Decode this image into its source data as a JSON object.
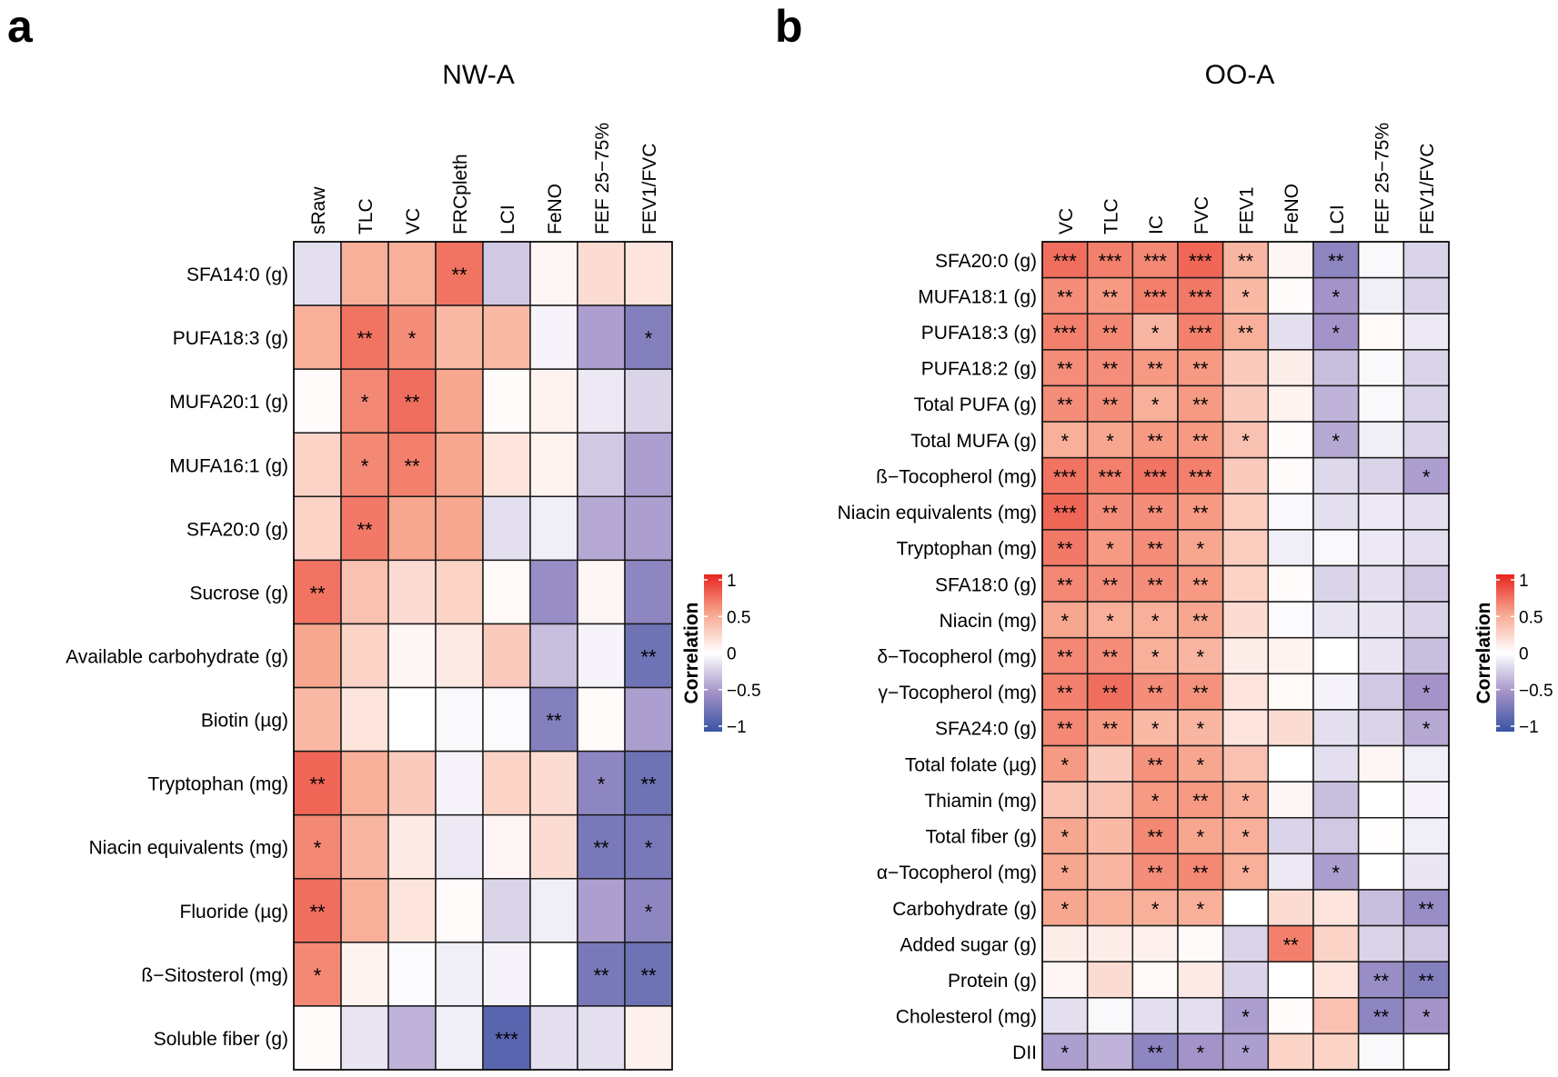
{
  "chart_data": [
    {
      "type": "heatmap",
      "panel_label": "a",
      "title": "NW-A",
      "columns": [
        "sRaw",
        "TLC",
        "VC",
        "FRCpleth",
        "LCI",
        "FeNO",
        "FEF 25−75%",
        "FEV1/FVC"
      ],
      "rows": [
        "SFA14:0 (g)",
        "PUFA18:3 (g)",
        "MUFA20:1 (g)",
        "MUFA16:1 (g)",
        "SFA20:0 (g)",
        "Sucrose (g)",
        "Available carbohydrate (g)",
        "Biotin (µg)",
        "Tryptophan (mg)",
        "Niacin equivalents (mg)",
        "Fluoride (µg)",
        "ß−Sitosterol (mg)",
        "Soluble fiber (g)"
      ],
      "values": [
        [
          -0.15,
          0.45,
          0.45,
          0.7,
          -0.25,
          0.05,
          0.2,
          0.15
        ],
        [
          0.45,
          0.7,
          0.6,
          0.4,
          0.4,
          -0.05,
          -0.45,
          -0.65
        ],
        [
          0.02,
          0.62,
          0.72,
          0.5,
          0.02,
          0.07,
          -0.1,
          -0.2
        ],
        [
          0.25,
          0.62,
          0.65,
          0.5,
          0.15,
          0.07,
          -0.25,
          -0.45
        ],
        [
          0.25,
          0.68,
          0.5,
          0.5,
          -0.15,
          -0.08,
          -0.4,
          -0.45
        ],
        [
          0.7,
          0.35,
          0.2,
          0.25,
          0.03,
          -0.55,
          0.05,
          -0.6
        ],
        [
          0.5,
          0.25,
          0.05,
          0.12,
          0.3,
          -0.3,
          -0.05,
          -0.75
        ],
        [
          0.4,
          0.15,
          0.0,
          -0.03,
          -0.02,
          -0.65,
          0.02,
          -0.45
        ],
        [
          0.75,
          0.45,
          0.3,
          -0.05,
          0.25,
          0.2,
          -0.6,
          -0.75
        ],
        [
          0.62,
          0.42,
          0.12,
          -0.1,
          0.05,
          0.2,
          -0.7,
          -0.7
        ],
        [
          0.72,
          0.45,
          0.15,
          0.02,
          -0.2,
          -0.08,
          -0.45,
          -0.6
        ],
        [
          0.62,
          0.07,
          -0.02,
          -0.08,
          -0.05,
          0.0,
          -0.7,
          -0.75
        ],
        [
          0.02,
          -0.12,
          -0.35,
          -0.08,
          -0.85,
          -0.15,
          -0.15,
          0.08
        ]
      ],
      "significance": [
        [
          "",
          "",
          "",
          "**",
          "",
          "",
          "",
          ""
        ],
        [
          "",
          "**",
          "*",
          "",
          "",
          "",
          "",
          "*"
        ],
        [
          "",
          "*",
          "**",
          "",
          "",
          "",
          "",
          ""
        ],
        [
          "",
          "*",
          "**",
          "",
          "",
          "",
          "",
          ""
        ],
        [
          "",
          "**",
          "",
          "",
          "",
          "",
          "",
          ""
        ],
        [
          "**",
          "",
          "",
          "",
          "",
          "",
          "",
          ""
        ],
        [
          "",
          "",
          "",
          "",
          "",
          "",
          "",
          "**"
        ],
        [
          "",
          "",
          "",
          "",
          "",
          "**",
          "",
          ""
        ],
        [
          "**",
          "",
          "",
          "",
          "",
          "",
          "*",
          "**"
        ],
        [
          "*",
          "",
          "",
          "",
          "",
          "",
          "**",
          "*"
        ],
        [
          "**",
          "",
          "",
          "",
          "",
          "",
          "",
          "*"
        ],
        [
          "*",
          "",
          "",
          "",
          "",
          "",
          "**",
          "**"
        ],
        [
          "",
          "",
          "",
          "",
          "***",
          "",
          "",
          ""
        ]
      ],
      "legend": {
        "title": "Correlation",
        "ticks": [
          "1",
          "0.5",
          "0",
          "−0.5",
          "−1"
        ],
        "range": [
          -1,
          1
        ]
      }
    },
    {
      "type": "heatmap",
      "panel_label": "b",
      "title": "OO-A",
      "columns": [
        "VC",
        "TLC",
        "IC",
        "FVC",
        "FEV1",
        "FeNO",
        "LCI",
        "FEF 25−75%",
        "FEV1/FVC"
      ],
      "rows": [
        "SFA20:0 (g)",
        "MUFA18:1 (g)",
        "PUFA18:3 (g)",
        "PUFA18:2 (g)",
        "Total PUFA (g)",
        "Total MUFA (g)",
        "ß−Tocopherol (mg)",
        "Niacin equivalents (mg)",
        "Tryptophan (mg)",
        "SFA18:0 (g)",
        "Niacin (mg)",
        "δ−Tocopherol (mg)",
        "γ−Tocopherol (mg)",
        "SFA24:0 (g)",
        "Total folate (µg)",
        "Thiamin (mg)",
        "Total fiber (g)",
        "α−Tocopherol (mg)",
        "Carbohydrate (g)",
        "Added sugar (g)",
        "Protein (g)",
        "Cholesterol (mg)",
        "DII"
      ],
      "values": [
        [
          0.72,
          0.65,
          0.62,
          0.75,
          0.42,
          0.05,
          -0.6,
          -0.03,
          -0.2
        ],
        [
          0.6,
          0.55,
          0.65,
          0.68,
          0.4,
          0.02,
          -0.5,
          -0.08,
          -0.2
        ],
        [
          0.65,
          0.62,
          0.42,
          0.65,
          0.45,
          -0.15,
          -0.5,
          0.03,
          -0.1
        ],
        [
          0.6,
          0.6,
          0.55,
          0.55,
          0.3,
          0.1,
          -0.3,
          -0.03,
          -0.2
        ],
        [
          0.6,
          0.6,
          0.45,
          0.55,
          0.3,
          0.07,
          -0.35,
          -0.03,
          -0.2
        ],
        [
          0.45,
          0.5,
          0.55,
          0.55,
          0.35,
          0.02,
          -0.4,
          -0.08,
          -0.2
        ],
        [
          0.7,
          0.65,
          0.7,
          0.65,
          0.3,
          0.02,
          -0.18,
          -0.2,
          -0.45
        ],
        [
          0.75,
          0.6,
          0.6,
          0.55,
          0.28,
          -0.03,
          -0.15,
          -0.1,
          -0.15
        ],
        [
          0.68,
          0.55,
          0.6,
          0.5,
          0.28,
          -0.08,
          -0.03,
          -0.1,
          -0.15
        ],
        [
          0.62,
          0.6,
          0.6,
          0.55,
          0.25,
          0.02,
          -0.2,
          -0.15,
          -0.25
        ],
        [
          0.5,
          0.45,
          0.45,
          0.5,
          0.2,
          -0.02,
          -0.12,
          -0.12,
          -0.2
        ],
        [
          0.62,
          0.6,
          0.45,
          0.42,
          0.1,
          0.07,
          0.0,
          -0.12,
          -0.3
        ],
        [
          0.65,
          0.72,
          0.6,
          0.58,
          0.15,
          0.03,
          -0.05,
          -0.25,
          -0.5
        ],
        [
          0.62,
          0.55,
          0.4,
          0.42,
          0.15,
          0.2,
          -0.15,
          -0.2,
          -0.4
        ],
        [
          0.55,
          0.3,
          0.58,
          0.5,
          0.35,
          0.0,
          -0.15,
          0.05,
          -0.08
        ],
        [
          0.35,
          0.35,
          0.55,
          0.55,
          0.45,
          0.05,
          -0.3,
          0.0,
          -0.05
        ],
        [
          0.5,
          0.4,
          0.62,
          0.5,
          0.45,
          -0.2,
          -0.25,
          0.01,
          -0.08
        ],
        [
          0.5,
          0.42,
          0.6,
          0.62,
          0.45,
          -0.1,
          -0.45,
          0.0,
          -0.12
        ],
        [
          0.5,
          0.45,
          0.45,
          0.45,
          0.0,
          0.2,
          0.15,
          -0.3,
          -0.55
        ],
        [
          0.1,
          0.1,
          0.08,
          0.03,
          -0.2,
          0.65,
          0.25,
          -0.2,
          -0.25
        ],
        [
          0.05,
          0.2,
          0.03,
          0.12,
          -0.2,
          0.0,
          0.15,
          -0.55,
          -0.65
        ],
        [
          -0.15,
          -0.03,
          -0.15,
          -0.15,
          -0.45,
          0.02,
          0.35,
          -0.6,
          -0.5
        ],
        [
          -0.45,
          -0.35,
          -0.6,
          -0.5,
          -0.45,
          0.25,
          0.25,
          -0.03,
          0.0
        ]
      ],
      "significance": [
        [
          "***",
          "***",
          "***",
          "***",
          "**",
          "",
          "**",
          "",
          ""
        ],
        [
          "**",
          "**",
          "***",
          "***",
          "*",
          "",
          "*",
          "",
          ""
        ],
        [
          "***",
          "**",
          "*",
          "***",
          "**",
          "",
          "*",
          "",
          ""
        ],
        [
          "**",
          "**",
          "**",
          "**",
          "",
          "",
          "",
          "",
          ""
        ],
        [
          "**",
          "**",
          "*",
          "**",
          "",
          "",
          "",
          "",
          ""
        ],
        [
          "*",
          "*",
          "**",
          "**",
          "*",
          "",
          "*",
          "",
          ""
        ],
        [
          "***",
          "***",
          "***",
          "***",
          "",
          "",
          "",
          "",
          "*"
        ],
        [
          "***",
          "**",
          "**",
          "**",
          "",
          "",
          "",
          "",
          ""
        ],
        [
          "**",
          "*",
          "**",
          "*",
          "",
          "",
          "",
          "",
          ""
        ],
        [
          "**",
          "**",
          "**",
          "**",
          "",
          "",
          "",
          "",
          ""
        ],
        [
          "*",
          "*",
          "*",
          "**",
          "",
          "",
          "",
          "",
          ""
        ],
        [
          "**",
          "**",
          "*",
          "*",
          "",
          "",
          "",
          "",
          ""
        ],
        [
          "**",
          "**",
          "**",
          "**",
          "",
          "",
          "",
          "",
          "*"
        ],
        [
          "**",
          "**",
          "*",
          "*",
          "",
          "",
          "",
          "",
          "*"
        ],
        [
          "*",
          "",
          "**",
          "*",
          "",
          "",
          "",
          "",
          ""
        ],
        [
          "",
          "",
          "*",
          "**",
          "*",
          "",
          "",
          "",
          ""
        ],
        [
          "*",
          "",
          "**",
          "*",
          "*",
          "",
          "",
          "",
          ""
        ],
        [
          "*",
          "",
          "**",
          "**",
          "*",
          "",
          "*",
          "",
          ""
        ],
        [
          "*",
          "",
          "*",
          "*",
          "",
          "",
          "",
          "",
          "**"
        ],
        [
          "",
          "",
          "",
          "",
          "",
          "**",
          "",
          "",
          ""
        ],
        [
          "",
          "",
          "",
          "",
          "",
          "",
          "",
          "**",
          "**"
        ],
        [
          "",
          "",
          "",
          "",
          "*",
          "",
          "",
          "**",
          "*"
        ],
        [
          "*",
          "",
          "**",
          "*",
          "*",
          "",
          "",
          "",
          ""
        ]
      ],
      "legend": {
        "title": "Correlation",
        "ticks": [
          "1",
          "0.5",
          "0",
          "−0.5",
          "−1"
        ],
        "range": [
          -1,
          1
        ]
      }
    }
  ]
}
